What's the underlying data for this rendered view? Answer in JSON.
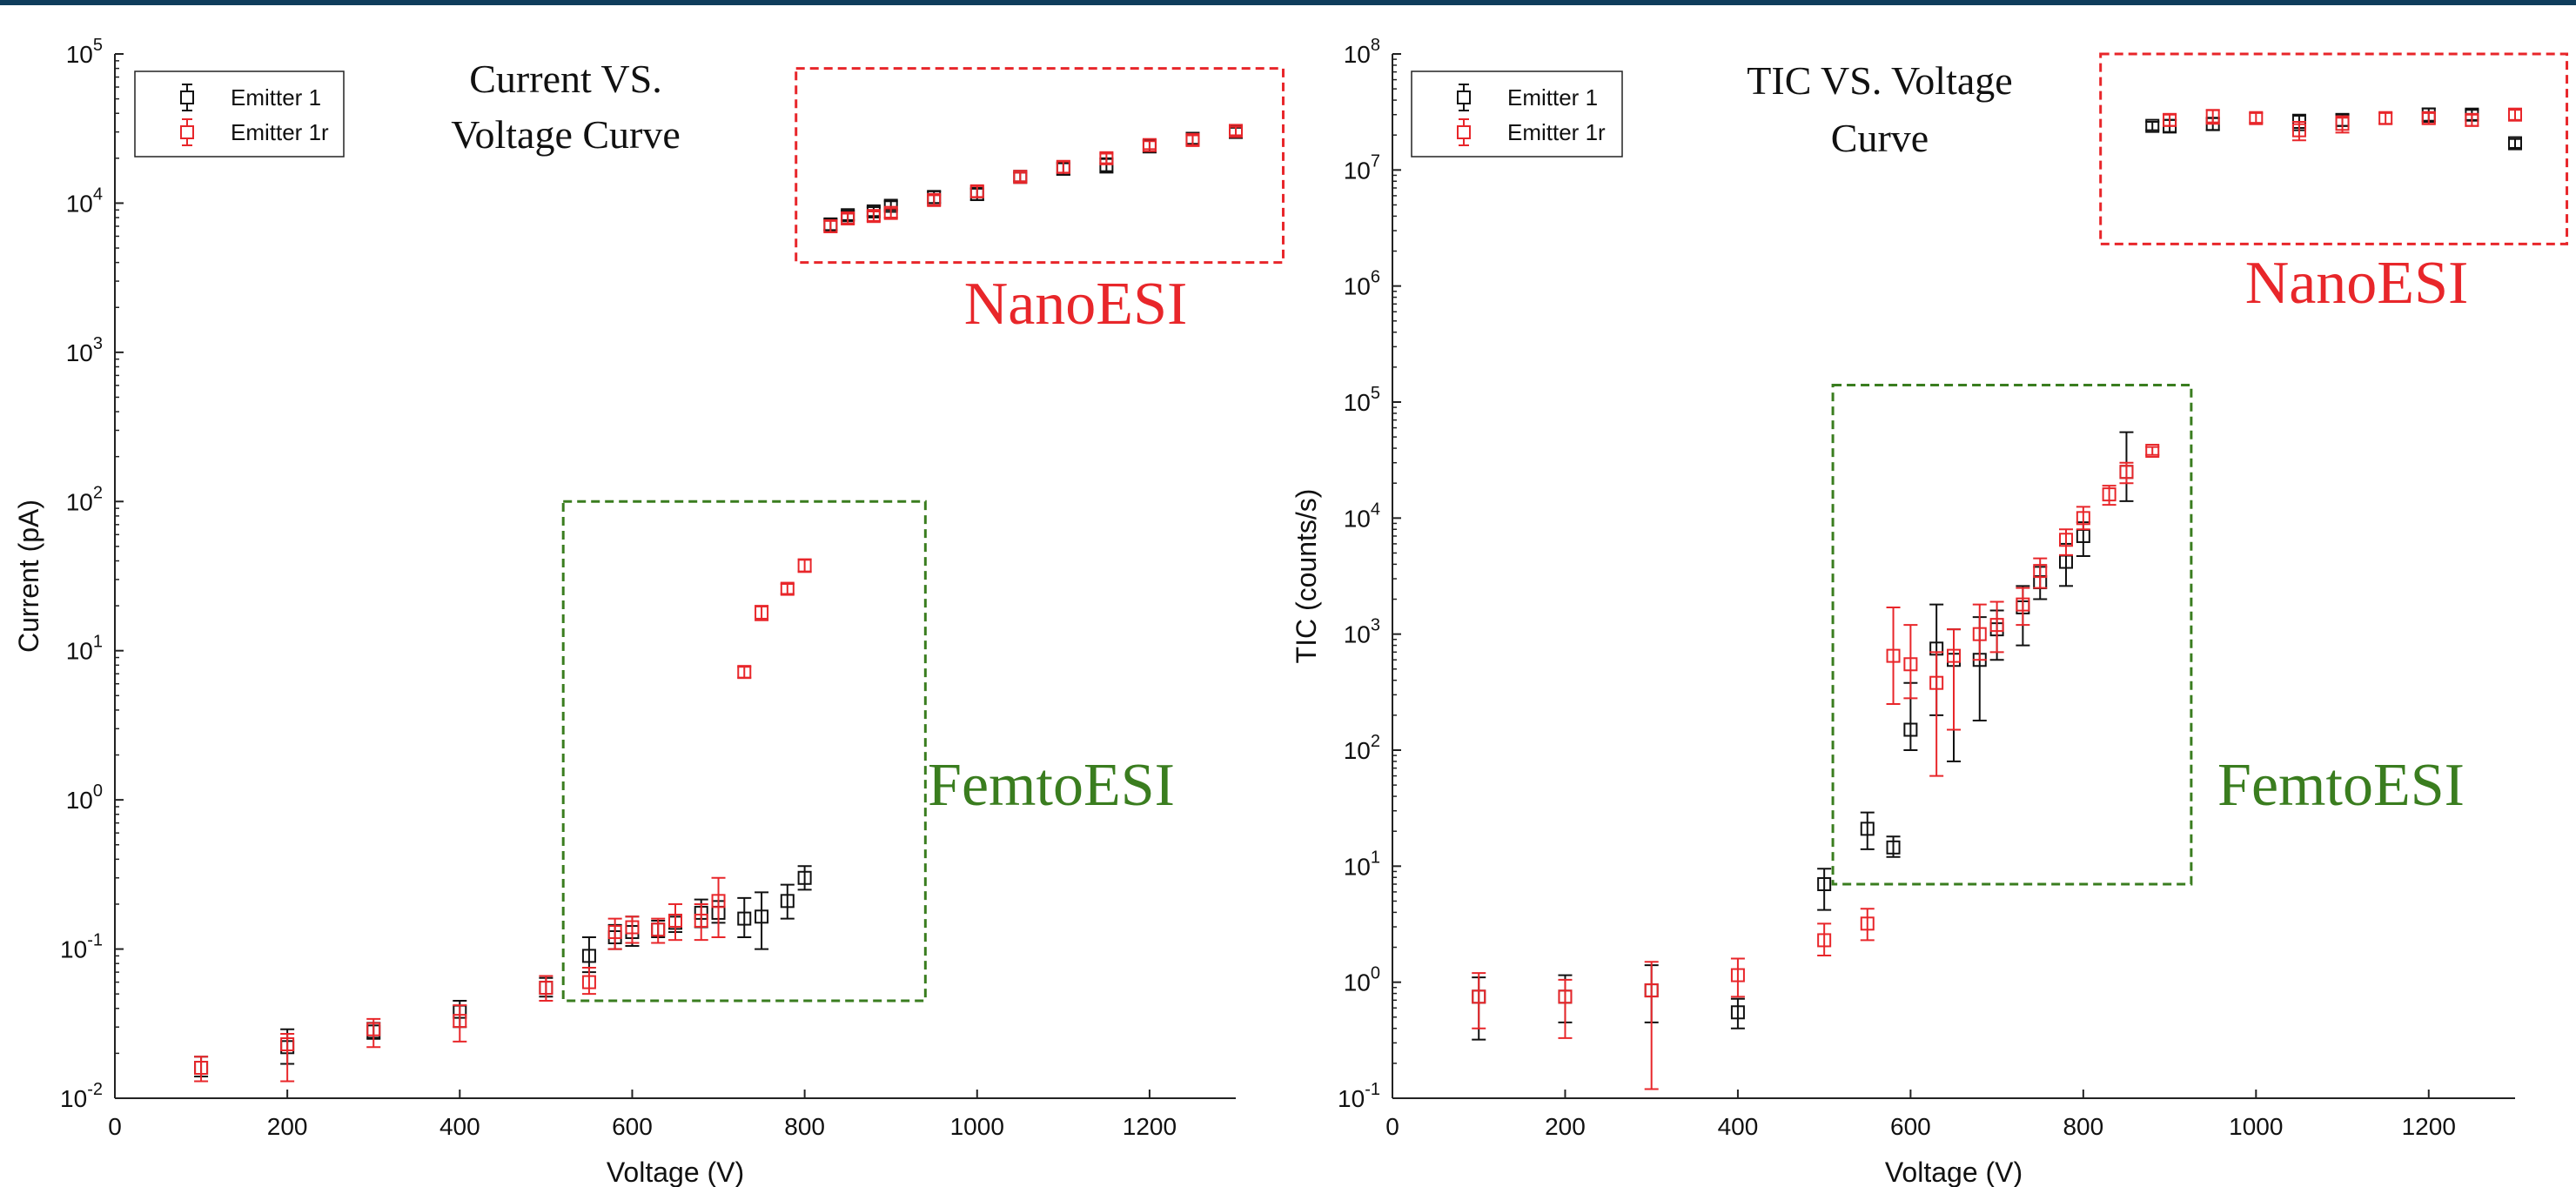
{
  "chart_data": [
    {
      "type": "scatter",
      "title": "Current VS. Voltage  Curve",
      "title_lines": [
        "Current VS.",
        "Voltage  Curve"
      ],
      "xlabel": "Voltage (V)",
      "ylabel": "Current (pA)",
      "xlim": [
        0,
        1300
      ],
      "ylim": [
        0.01,
        100000
      ],
      "yscale": "log",
      "legend_position": "top-left",
      "x_ticks": [
        "0",
        "200",
        "400",
        "600",
        "800",
        "1000",
        "1200"
      ],
      "y_ticks": [
        {
          "base": "10",
          "exp": "-2"
        },
        {
          "base": "10",
          "exp": "-1"
        },
        {
          "base": "10",
          "exp": "0"
        },
        {
          "base": "10",
          "exp": "1"
        },
        {
          "base": "10",
          "exp": "2"
        },
        {
          "base": "10",
          "exp": "3"
        },
        {
          "base": "10",
          "exp": "4"
        },
        {
          "base": "10",
          "exp": "5"
        }
      ],
      "series": [
        {
          "name": "Emitter 1",
          "color": "#111111",
          "points": [
            {
              "x": 100,
              "y": 0.016,
              "lo": 0.014,
              "hi": 0.019
            },
            {
              "x": 200,
              "y": 0.022,
              "lo": 0.017,
              "hi": 0.029
            },
            {
              "x": 300,
              "y": 0.028,
              "lo": 0.025,
              "hi": 0.032
            },
            {
              "x": 400,
              "y": 0.038,
              "lo": 0.03,
              "hi": 0.045
            },
            {
              "x": 500,
              "y": 0.055,
              "lo": 0.048,
              "hi": 0.064
            },
            {
              "x": 550,
              "y": 0.09,
              "lo": 0.07,
              "hi": 0.12
            },
            {
              "x": 580,
              "y": 0.12,
              "lo": 0.1,
              "hi": 0.145
            },
            {
              "x": 600,
              "y": 0.13,
              "lo": 0.105,
              "hi": 0.165
            },
            {
              "x": 630,
              "y": 0.135,
              "lo": 0.12,
              "hi": 0.155
            },
            {
              "x": 650,
              "y": 0.15,
              "lo": 0.13,
              "hi": 0.17
            },
            {
              "x": 680,
              "y": 0.175,
              "lo": 0.14,
              "hi": 0.215
            },
            {
              "x": 700,
              "y": 0.175,
              "lo": 0.15,
              "hi": 0.21
            },
            {
              "x": 730,
              "y": 0.16,
              "lo": 0.12,
              "hi": 0.22
            },
            {
              "x": 750,
              "y": 0.165,
              "lo": 0.1,
              "hi": 0.24
            },
            {
              "x": 780,
              "y": 0.21,
              "lo": 0.16,
              "hi": 0.27
            },
            {
              "x": 800,
              "y": 0.3,
              "lo": 0.25,
              "hi": 0.36
            },
            {
              "x": 830,
              "y": 7200,
              "lo": 6600,
              "hi": 7800
            },
            {
              "x": 850,
              "y": 8300,
              "lo": 7700,
              "hi": 8900
            },
            {
              "x": 880,
              "y": 8800,
              "lo": 8200,
              "hi": 9400
            },
            {
              "x": 900,
              "y": 9600,
              "lo": 9000,
              "hi": 10300
            },
            {
              "x": 950,
              "y": 11000,
              "lo": 10000,
              "hi": 12000
            },
            {
              "x": 1000,
              "y": 11500,
              "lo": 10500,
              "hi": 12500
            },
            {
              "x": 1050,
              "y": 15000,
              "lo": 14000,
              "hi": 16000
            },
            {
              "x": 1100,
              "y": 17000,
              "lo": 15500,
              "hi": 18500
            },
            {
              "x": 1150,
              "y": 18000,
              "lo": 16000,
              "hi": 20000
            },
            {
              "x": 1200,
              "y": 24000,
              "lo": 22000,
              "hi": 26500
            },
            {
              "x": 1250,
              "y": 27000,
              "lo": 25000,
              "hi": 29000
            },
            {
              "x": 1300,
              "y": 30000,
              "lo": 28000,
              "hi": 32000
            }
          ]
        },
        {
          "name": "Emitter 1r",
          "color": "#e8262a",
          "points": [
            {
              "x": 100,
              "y": 0.016,
              "lo": 0.013,
              "hi": 0.019
            },
            {
              "x": 200,
              "y": 0.023,
              "lo": 0.013,
              "hi": 0.027
            },
            {
              "x": 300,
              "y": 0.029,
              "lo": 0.022,
              "hi": 0.034
            },
            {
              "x": 400,
              "y": 0.033,
              "lo": 0.024,
              "hi": 0.042
            },
            {
              "x": 500,
              "y": 0.055,
              "lo": 0.045,
              "hi": 0.066
            },
            {
              "x": 550,
              "y": 0.06,
              "lo": 0.05,
              "hi": 0.075
            },
            {
              "x": 580,
              "y": 0.13,
              "lo": 0.1,
              "hi": 0.16
            },
            {
              "x": 600,
              "y": 0.14,
              "lo": 0.11,
              "hi": 0.165
            },
            {
              "x": 630,
              "y": 0.135,
              "lo": 0.11,
              "hi": 0.16
            },
            {
              "x": 650,
              "y": 0.155,
              "lo": 0.115,
              "hi": 0.2
            },
            {
              "x": 680,
              "y": 0.155,
              "lo": 0.115,
              "hi": 0.2
            },
            {
              "x": 700,
              "y": 0.21,
              "lo": 0.12,
              "hi": 0.3
            },
            {
              "x": 730,
              "y": 7.2,
              "lo": 6.6,
              "hi": 7.8
            },
            {
              "x": 750,
              "y": 18,
              "lo": 16,
              "hi": 20
            },
            {
              "x": 780,
              "y": 26,
              "lo": 24,
              "hi": 28
            },
            {
              "x": 800,
              "y": 37,
              "lo": 34,
              "hi": 41
            },
            {
              "x": 830,
              "y": 7000,
              "lo": 6400,
              "hi": 7600
            },
            {
              "x": 850,
              "y": 7900,
              "lo": 7300,
              "hi": 8500
            },
            {
              "x": 880,
              "y": 8200,
              "lo": 7600,
              "hi": 8800
            },
            {
              "x": 900,
              "y": 8600,
              "lo": 8000,
              "hi": 9200
            },
            {
              "x": 950,
              "y": 10500,
              "lo": 9700,
              "hi": 11300
            },
            {
              "x": 1000,
              "y": 12000,
              "lo": 11000,
              "hi": 13000
            },
            {
              "x": 1050,
              "y": 15000,
              "lo": 14000,
              "hi": 16000
            },
            {
              "x": 1100,
              "y": 17500,
              "lo": 16000,
              "hi": 19000
            },
            {
              "x": 1150,
              "y": 20000,
              "lo": 18500,
              "hi": 21500
            },
            {
              "x": 1200,
              "y": 24500,
              "lo": 23000,
              "hi": 26000
            },
            {
              "x": 1250,
              "y": 26500,
              "lo": 24500,
              "hi": 28500
            },
            {
              "x": 1300,
              "y": 30500,
              "lo": 28500,
              "hi": 32500
            }
          ]
        }
      ],
      "annotations": [
        {
          "text": "NanoESI",
          "color": "#e8262a",
          "box": {
            "x0": 790,
            "x1": 1355,
            "y0": 4000,
            "y1": 80000
          }
        },
        {
          "text": "FemtoESI",
          "color": "#3a7d1f",
          "box": {
            "x0": 520,
            "x1": 940,
            "y0": 0.045,
            "y1": 100
          }
        }
      ]
    },
    {
      "type": "scatter",
      "title": "TIC VS. Voltage Curve",
      "title_lines": [
        "TIC VS. Voltage",
        "Curve"
      ],
      "xlabel": "Voltage (V)",
      "ylabel": "TIC (counts/s)",
      "xlim": [
        0,
        1300
      ],
      "ylim": [
        0.1,
        100000000
      ],
      "yscale": "log",
      "legend_position": "top-left",
      "x_ticks": [
        "0",
        "200",
        "400",
        "600",
        "800",
        "1000",
        "1200"
      ],
      "y_ticks": [
        {
          "base": "10",
          "exp": "-1"
        },
        {
          "base": "10",
          "exp": "0"
        },
        {
          "base": "10",
          "exp": "1"
        },
        {
          "base": "10",
          "exp": "2"
        },
        {
          "base": "10",
          "exp": "3"
        },
        {
          "base": "10",
          "exp": "4"
        },
        {
          "base": "10",
          "exp": "5"
        },
        {
          "base": "10",
          "exp": "6"
        },
        {
          "base": "10",
          "exp": "7"
        },
        {
          "base": "10",
          "exp": "8"
        }
      ],
      "series": [
        {
          "name": "Emitter 1",
          "color": "#111111",
          "points": [
            {
              "x": 100,
              "y": 0.75,
              "lo": 0.32,
              "hi": 1.1
            },
            {
              "x": 200,
              "y": 0.75,
              "lo": 0.45,
              "hi": 1.15
            },
            {
              "x": 300,
              "y": 0.85,
              "lo": 0.45,
              "hi": 1.4
            },
            {
              "x": 400,
              "y": 0.55,
              "lo": 0.4,
              "hi": 0.72
            },
            {
              "x": 500,
              "y": 7,
              "lo": 4.2,
              "hi": 9.5
            },
            {
              "x": 550,
              "y": 21,
              "lo": 14,
              "hi": 29
            },
            {
              "x": 580,
              "y": 14.5,
              "lo": 12,
              "hi": 18
            },
            {
              "x": 600,
              "y": 150,
              "lo": 100,
              "hi": 380
            },
            {
              "x": 630,
              "y": 750,
              "lo": 200,
              "hi": 1800
            },
            {
              "x": 650,
              "y": 600,
              "lo": 80,
              "hi": 1100
            },
            {
              "x": 680,
              "y": 600,
              "lo": 180,
              "hi": 1400
            },
            {
              "x": 700,
              "y": 1100,
              "lo": 600,
              "hi": 1600
            },
            {
              "x": 730,
              "y": 1700,
              "lo": 800,
              "hi": 2600
            },
            {
              "x": 750,
              "y": 2800,
              "lo": 2000,
              "hi": 3800
            },
            {
              "x": 780,
              "y": 4200,
              "lo": 2600,
              "hi": 6000
            },
            {
              "x": 800,
              "y": 7000,
              "lo": 4700,
              "hi": 9200
            },
            {
              "x": 850,
              "y": 25000,
              "lo": 14000,
              "hi": 55000
            },
            {
              "x": 880,
              "y": 24000000,
              "lo": 22000000,
              "hi": 26000000
            },
            {
              "x": 900,
              "y": 24000000,
              "lo": 21000000,
              "hi": 27000000
            },
            {
              "x": 950,
              "y": 25000000,
              "lo": 22000000,
              "hi": 28000000
            },
            {
              "x": 1050,
              "y": 26000000,
              "lo": 22000000,
              "hi": 30000000
            },
            {
              "x": 1100,
              "y": 27000000,
              "lo": 24000000,
              "hi": 30000000
            },
            {
              "x": 1200,
              "y": 30000000,
              "lo": 26000000,
              "hi": 34000000
            },
            {
              "x": 1250,
              "y": 30000000,
              "lo": 27000000,
              "hi": 33000000
            },
            {
              "x": 1300,
              "y": 17000000,
              "lo": 15500000,
              "hi": 18500000
            }
          ]
        },
        {
          "name": "Emitter 1r",
          "color": "#e8262a",
          "points": [
            {
              "x": 100,
              "y": 0.75,
              "lo": 0.4,
              "hi": 1.2
            },
            {
              "x": 200,
              "y": 0.75,
              "lo": 0.33,
              "hi": 1.05
            },
            {
              "x": 300,
              "y": 0.85,
              "lo": 0.12,
              "hi": 1.5
            },
            {
              "x": 400,
              "y": 1.15,
              "lo": 0.75,
              "hi": 1.6
            },
            {
              "x": 500,
              "y": 2.3,
              "lo": 1.7,
              "hi": 3.2
            },
            {
              "x": 550,
              "y": 3.2,
              "lo": 2.3,
              "hi": 4.3
            },
            {
              "x": 580,
              "y": 650,
              "lo": 250,
              "hi": 1700
            },
            {
              "x": 600,
              "y": 550,
              "lo": 280,
              "hi": 1200
            },
            {
              "x": 630,
              "y": 380,
              "lo": 60,
              "hi": 700
            },
            {
              "x": 650,
              "y": 650,
              "lo": 150,
              "hi": 1100
            },
            {
              "x": 680,
              "y": 1000,
              "lo": 600,
              "hi": 1800
            },
            {
              "x": 700,
              "y": 1200,
              "lo": 700,
              "hi": 1900
            },
            {
              "x": 730,
              "y": 1800,
              "lo": 1200,
              "hi": 2500
            },
            {
              "x": 750,
              "y": 3500,
              "lo": 2500,
              "hi": 4500
            },
            {
              "x": 780,
              "y": 6500,
              "lo": 4800,
              "hi": 8000
            },
            {
              "x": 800,
              "y": 10000,
              "lo": 8000,
              "hi": 12500
            },
            {
              "x": 830,
              "y": 16000,
              "lo": 13000,
              "hi": 19000
            },
            {
              "x": 850,
              "y": 25000,
              "lo": 20000,
              "hi": 30000
            },
            {
              "x": 880,
              "y": 38000,
              "lo": 35000,
              "hi": 41000
            },
            {
              "x": 900,
              "y": 27000000,
              "lo": 24000000,
              "hi": 30000000
            },
            {
              "x": 950,
              "y": 29000000,
              "lo": 25000000,
              "hi": 33000000
            },
            {
              "x": 1000,
              "y": 28000000,
              "lo": 25500000,
              "hi": 31000000
            },
            {
              "x": 1050,
              "y": 22000000,
              "lo": 18000000,
              "hi": 26000000
            },
            {
              "x": 1100,
              "y": 25000000,
              "lo": 21000000,
              "hi": 29000000
            },
            {
              "x": 1150,
              "y": 28000000,
              "lo": 25000000,
              "hi": 31000000
            },
            {
              "x": 1200,
              "y": 28000000,
              "lo": 25000000,
              "hi": 31000000
            },
            {
              "x": 1250,
              "y": 27000000,
              "lo": 24000000,
              "hi": 30000000
            },
            {
              "x": 1300,
              "y": 30000000,
              "lo": 27000000,
              "hi": 33000000
            }
          ]
        }
      ],
      "annotations": [
        {
          "text": "NanoESI",
          "color": "#e8262a",
          "box": {
            "x0": 820,
            "x1": 1360,
            "y0": 2300000,
            "y1": 100000000
          }
        },
        {
          "text": "FemtoESI",
          "color": "#3a7d1f",
          "box": {
            "x0": 510,
            "x1": 925,
            "y0": 7,
            "y1": 140000
          }
        }
      ]
    }
  ]
}
